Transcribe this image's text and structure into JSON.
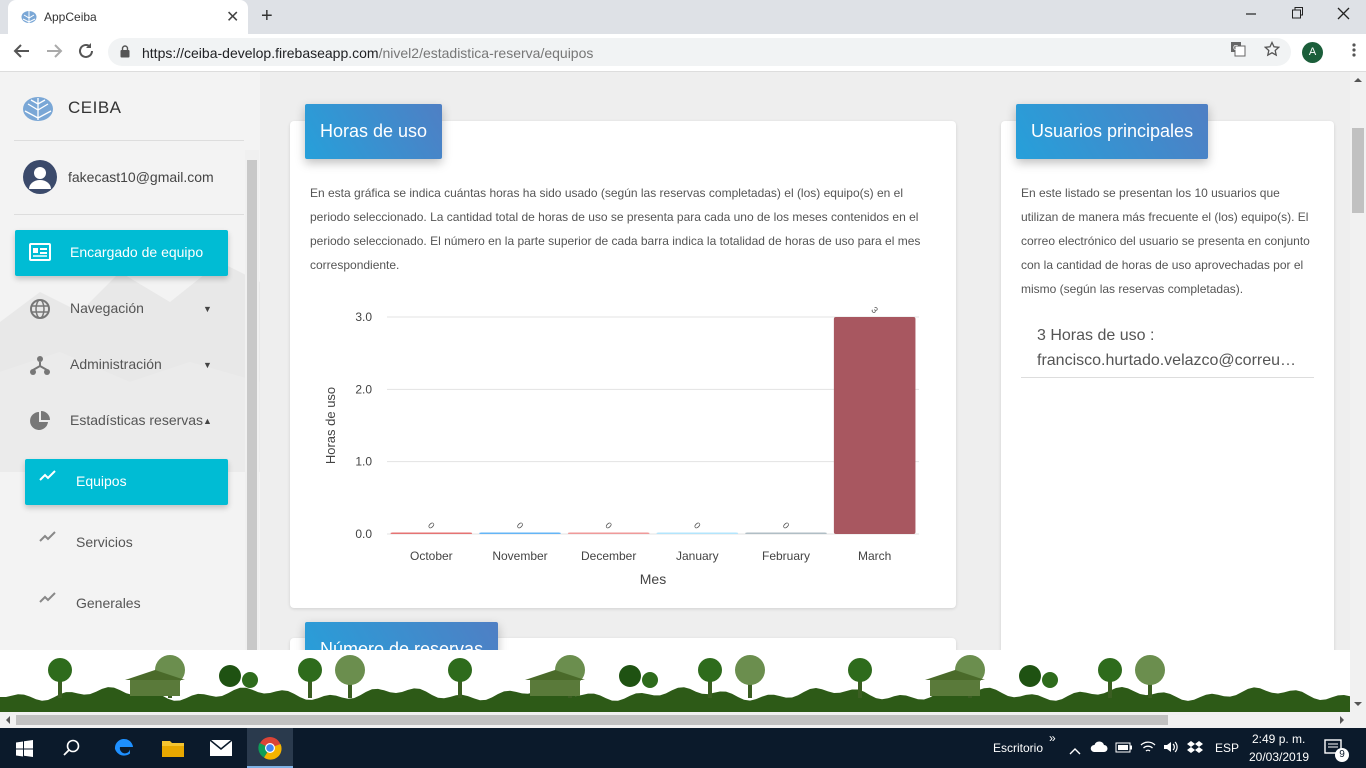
{
  "browser": {
    "tab_title": "AppCeiba",
    "tab_close": "✕",
    "new_tab": "+",
    "url_host": "https://ceiba-develop.firebaseapp.com",
    "url_path": "/nivel2/estadistica-reserva/equipos",
    "profile_initial": "A"
  },
  "sidebar": {
    "brand": "CEIBA",
    "user_email": "fakecast10@gmail.com",
    "items": [
      {
        "label": "Encargado de equipo",
        "icon": "id-card-icon"
      },
      {
        "label": "Navegación",
        "icon": "globe-icon"
      },
      {
        "label": "Administración",
        "icon": "hierarchy-icon"
      },
      {
        "label": "Estadísticas reservas",
        "icon": "pie-chart-icon"
      },
      {
        "label": "Equipos",
        "icon": "trending-icon"
      },
      {
        "label": "Servicios",
        "icon": "trending-icon"
      },
      {
        "label": "Generales",
        "icon": "trending-icon"
      }
    ]
  },
  "hours_card": {
    "title": "Horas de uso",
    "description": "En esta gráfica se indica cuántas horas ha sido usado (según las reservas completadas) el (los) equipo(s) en el periodo seleccionado. La cantidad total de horas de uso se presenta para cada uno de los meses contenidos en el periodo seleccionado. El número en la parte superior de cada barra indica la totalidad de horas de uso para el mes correspondiente."
  },
  "reservations_card": {
    "title": "Número de reservas"
  },
  "users_card": {
    "title": "Usuarios principales",
    "description": "En este listado se presentan los 10 usuarios que utilizan de manera más frecuente el (los) equipo(s). El correo electrónico del usuario se presenta en conjunto con la cantidad de horas de uso aprovechadas por el mismo (según las reservas completadas).",
    "entries": [
      {
        "hours": "3 Horas de uso :",
        "email": "francisco.hurtado.velazco@correunivalle.edu.co"
      }
    ]
  },
  "chart_data": {
    "type": "bar",
    "categories": [
      "October",
      "November",
      "December",
      "January",
      "February",
      "March"
    ],
    "values": [
      0,
      0,
      0,
      0,
      0,
      3
    ],
    "data_labels": [
      "0",
      "0",
      "0",
      "0",
      "0",
      "3"
    ],
    "colors": [
      "#e57373",
      "#64b5f6",
      "#ef9a9a",
      "#b3e5fc",
      "#b0bec5",
      "#a85760"
    ],
    "xlabel": "Mes",
    "ylabel": "Horas de uso",
    "yticks": [
      "0.0",
      "1.0",
      "2.0",
      "3.0"
    ],
    "ylim": [
      0,
      3
    ],
    "grid": true
  },
  "taskbar": {
    "desktop_label": "Escritorio",
    "chevron": "»",
    "language": "ESP",
    "time": "2:49 p. m.",
    "date": "20/03/2019",
    "notifications": "9"
  },
  "colors": {
    "accent": "#00bcd4",
    "header_gradient_start": "#26a0da",
    "header_gradient_end": "#4f7fc4"
  }
}
